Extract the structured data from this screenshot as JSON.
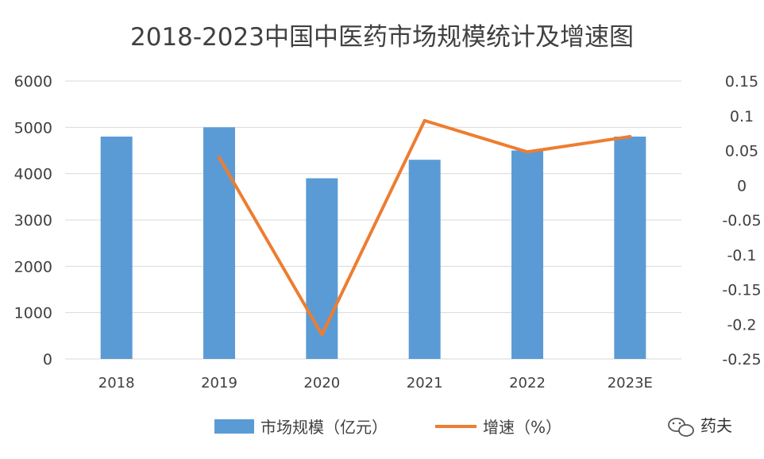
{
  "chart_data": {
    "type": "bar",
    "title": "2018-2023中国中医药市场规模统计及增速图",
    "categories": [
      "2018",
      "2019",
      "2020",
      "2021",
      "2022",
      "2023E"
    ],
    "series": [
      {
        "name": "市场规模（亿元）",
        "type": "bar",
        "axis": "left",
        "color": "#5b9bd5",
        "values": [
          4800,
          5000,
          3900,
          4300,
          4500,
          4800
        ]
      },
      {
        "name": "增速（%）",
        "type": "line",
        "axis": "right",
        "color": "#ed7d31",
        "values": [
          null,
          0.04,
          -0.215,
          0.093,
          0.048,
          0.07
        ]
      }
    ],
    "y_left": {
      "ylim": [
        0,
        6000
      ],
      "ticks": [
        "0",
        "1000",
        "2000",
        "3000",
        "4000",
        "5000",
        "6000"
      ]
    },
    "y_right": {
      "ylim": [
        -0.25,
        0.15
      ],
      "ticks": [
        "-0.25",
        "-0.2",
        "-0.15",
        "-0.1",
        "-0.05",
        "0",
        "0.05",
        "0.1",
        "0.15"
      ]
    },
    "grid": true,
    "legend": "bottom"
  },
  "watermark": {
    "text": "药夫",
    "icon": "wechat-icon"
  }
}
